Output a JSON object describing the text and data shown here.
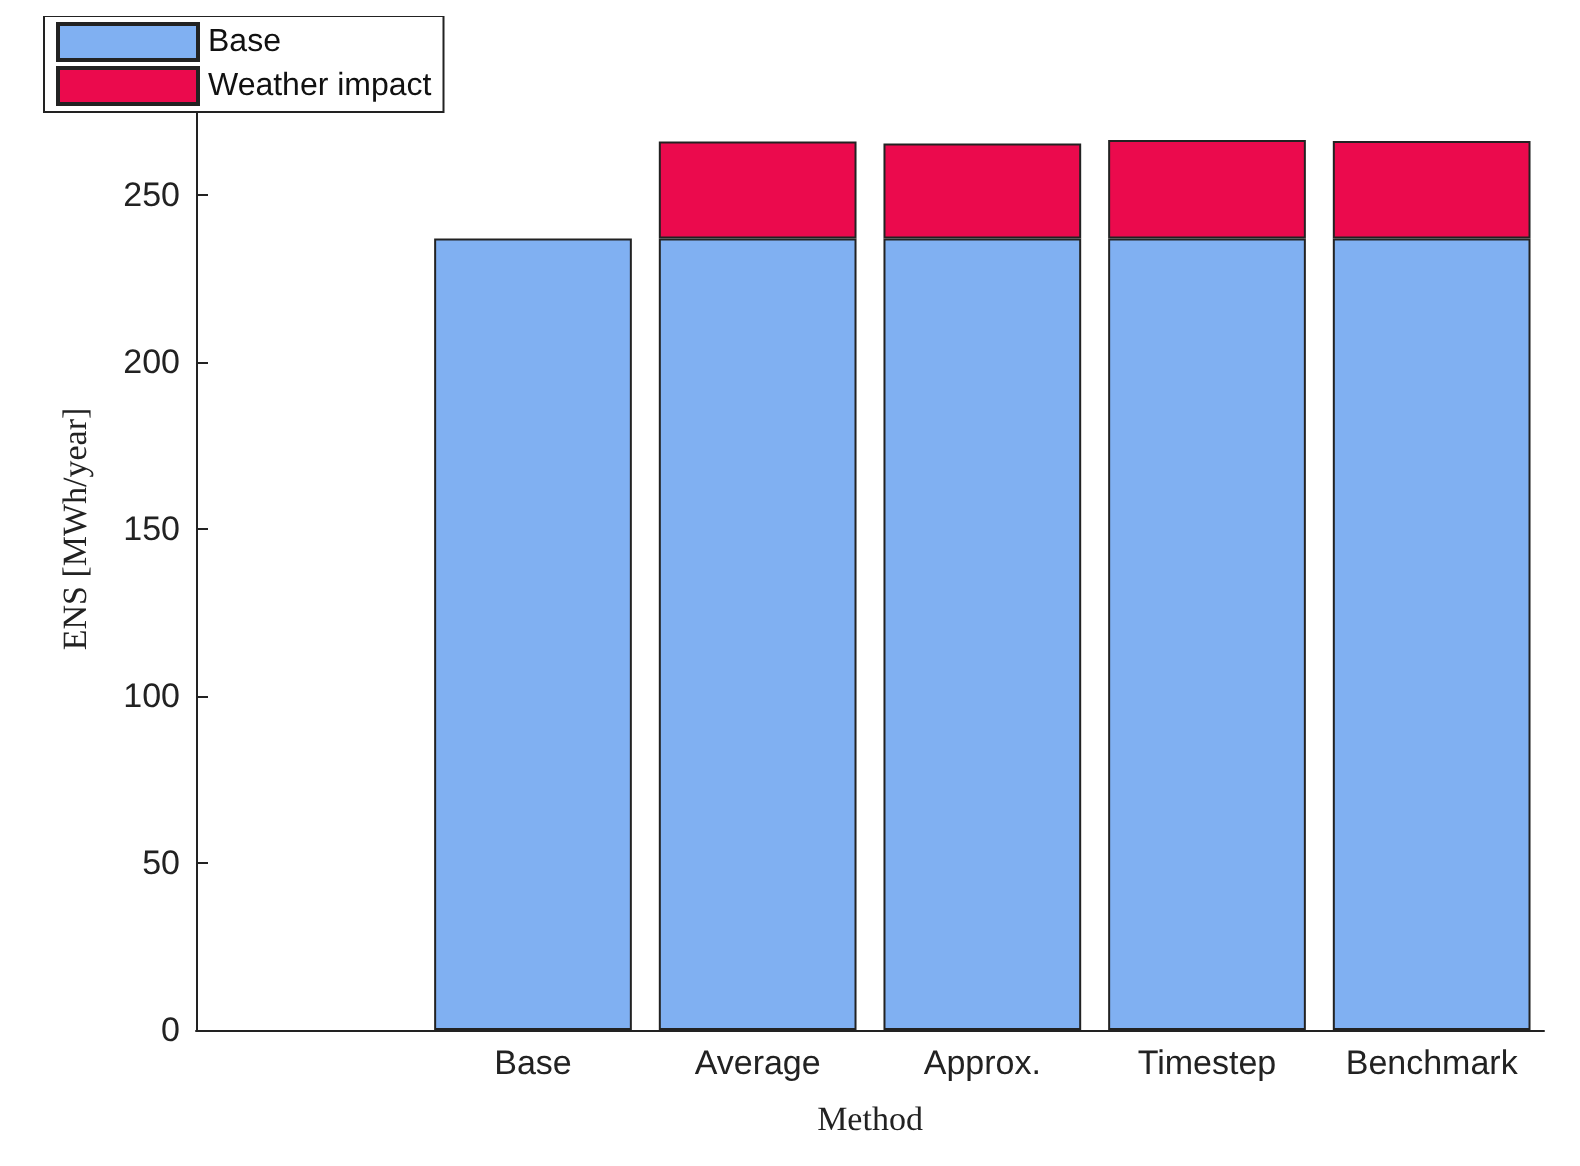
{
  "chart_data": {
    "type": "bar",
    "stacked": true,
    "xlabel": "Method",
    "ylabel": "ENS [MWh/year]",
    "categories": [
      null,
      "Base",
      "Average",
      "Approx.",
      "Timestep",
      "Benchmark"
    ],
    "series": [
      {
        "name": "Base",
        "color": "#80b0f2",
        "values": [
          null,
          237,
          237,
          237,
          237,
          237
        ]
      },
      {
        "name": "Weather impact",
        "color": "#eb0a4d",
        "values": [
          null,
          null,
          29,
          28.4,
          29.5,
          29.2
        ]
      }
    ],
    "ylim": [
      0,
      300
    ],
    "yticks": [
      0,
      50,
      100,
      150,
      200,
      250
    ],
    "grid": false,
    "legend": "top left"
  }
}
